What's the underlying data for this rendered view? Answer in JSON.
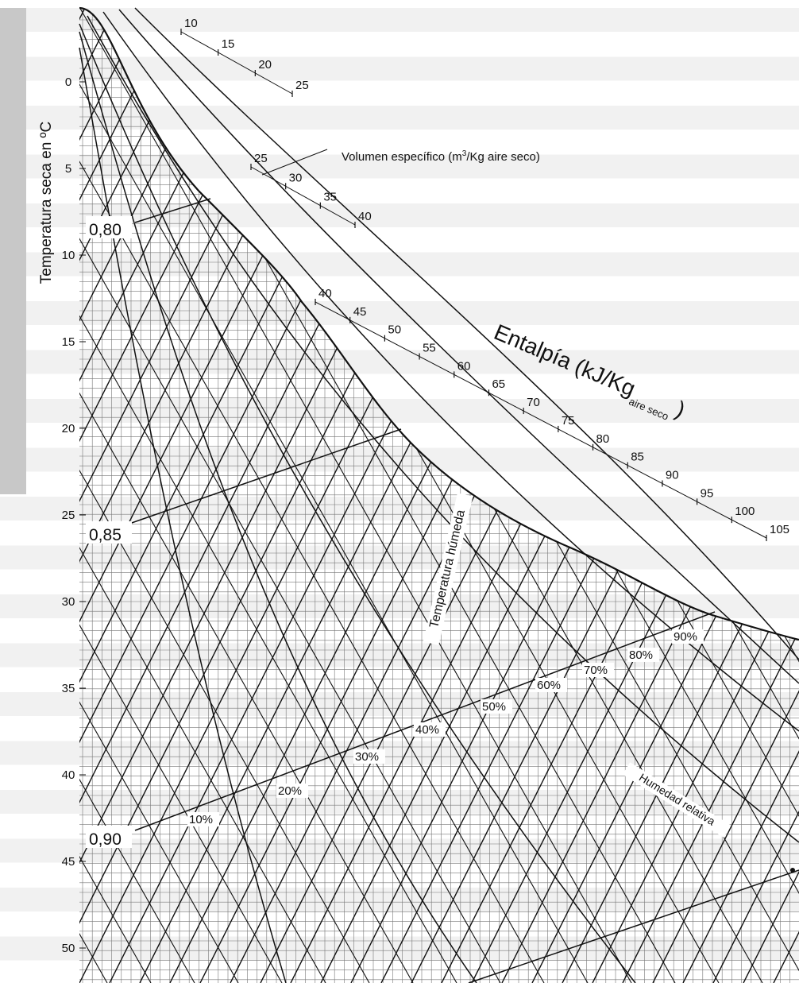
{
  "diagram": {
    "axis_title": "Temperatura seca en ºC",
    "temperature_ticks": [
      "0",
      "5",
      "10",
      "15",
      "20",
      "25",
      "30",
      "35",
      "40",
      "45",
      "50"
    ],
    "volume_scale_1_labels": [
      "10",
      "15",
      "20",
      "25"
    ],
    "volume_scale_2_labels": [
      "25",
      "30",
      "35",
      "40"
    ],
    "volume_label": {
      "prefix": "Volumen específico (m",
      "sup": "3",
      "suffix": "/Kg aire seco)"
    },
    "enthalpy_labels": [
      "40",
      "45",
      "50",
      "55",
      "60",
      "65",
      "70",
      "75",
      "80",
      "85",
      "90",
      "95",
      "100",
      "105"
    ],
    "enthalpy_title": {
      "main": "Entalpía (kJ/Kg",
      "sub": "aire seco",
      "close": ")"
    },
    "specific_volume_labels": [
      "0,80",
      "0,85",
      "0,90"
    ],
    "relative_humidity_labels": [
      "10%",
      "20%",
      "30%",
      "40%",
      "50%",
      "60%",
      "70%",
      "80%",
      "90%"
    ],
    "wet_bulb_label": "Temperatura húmeda",
    "relative_humidity_title": "Humedad relativa"
  }
}
